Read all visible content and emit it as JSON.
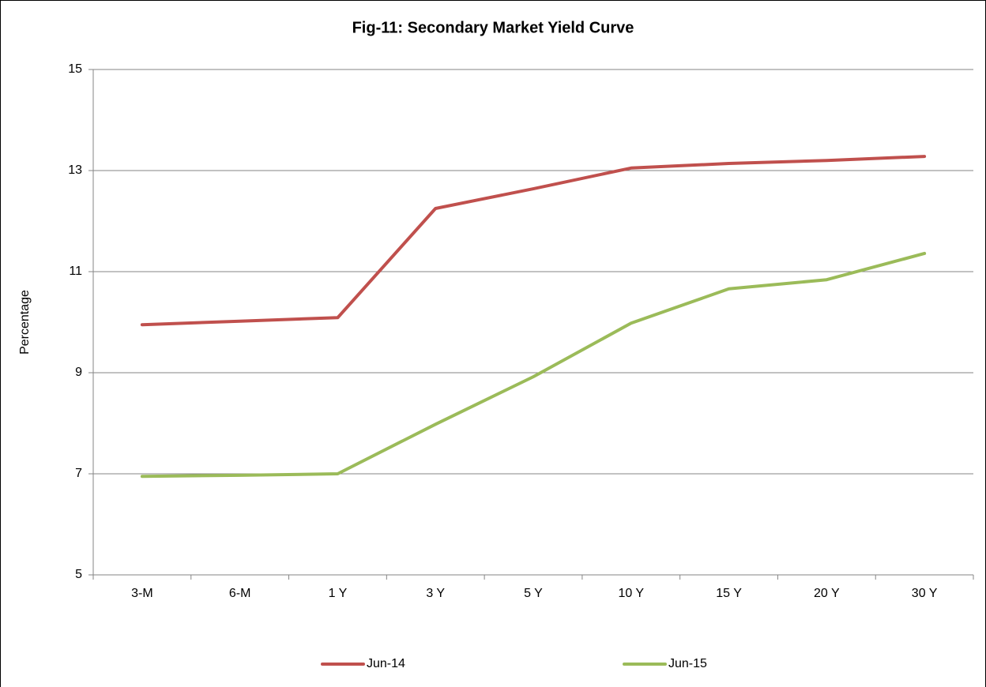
{
  "chart_data": {
    "type": "line",
    "title": "Fig-11: Secondary Market Yield Curve",
    "y_label": "Percentage",
    "categories": [
      "3-M",
      "6-M",
      "1 Y",
      "3 Y",
      "5 Y",
      "10 Y",
      "15 Y",
      "20 Y",
      "30 Y"
    ],
    "series": [
      {
        "name": "Jun-14",
        "color": "#c0504d",
        "values": [
          9.95,
          10.02,
          10.09,
          12.25,
          12.64,
          13.05,
          13.14,
          13.2,
          13.28
        ]
      },
      {
        "name": "Jun-15",
        "color": "#9bbb59",
        "values": [
          6.95,
          6.97,
          7.0,
          7.98,
          8.92,
          9.98,
          10.66,
          10.84,
          11.36
        ]
      }
    ],
    "ylim": [
      5,
      15
    ],
    "yticks": [
      5,
      7,
      9,
      11,
      13,
      15
    ],
    "grid": true,
    "legend": "bottom"
  }
}
